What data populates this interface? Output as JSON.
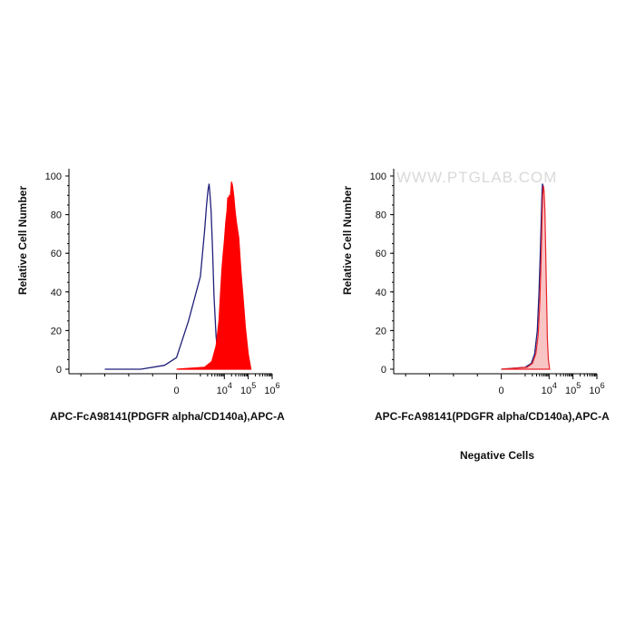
{
  "chart_data": [
    {
      "type": "area",
      "title": "",
      "xlabel": "APC-FcA98141(PDGFR alpha/CD140a),APC-A",
      "ylabel": "Relative Cell Number",
      "ylim": [
        0,
        100
      ],
      "x_scale": "biexponential",
      "x_tick_labels": [
        {
          "base": "0",
          "exp": ""
        },
        {
          "base": "10",
          "exp": "4"
        },
        {
          "base": "10",
          "exp": "5"
        },
        {
          "base": "10",
          "exp": "6"
        }
      ],
      "y_ticks": [
        0,
        20,
        40,
        60,
        80,
        100
      ],
      "series": [
        {
          "role": "control",
          "style": "line",
          "color": "#1f1f7a",
          "x": [
            -3000,
            -1500,
            -500,
            0,
            500,
            1000,
            1500,
            1800,
            2100,
            2300,
            2500,
            2800,
            3200,
            3700,
            4500,
            5500,
            6500,
            8000
          ],
          "y": [
            0,
            0,
            2,
            6,
            25,
            48,
            72,
            85,
            93,
            96,
            91,
            82,
            62,
            38,
            17,
            6,
            2,
            0
          ]
        },
        {
          "role": "stained",
          "style": "filled",
          "color": "#ff0000",
          "x": [
            0,
            1500,
            3000,
            4500,
            6000,
            7000,
            8000,
            9000,
            10000,
            11500,
            13000,
            14000,
            15000,
            16000,
            17000,
            18000,
            19000,
            20000,
            22000,
            25000,
            28000,
            32000,
            40000,
            50000,
            60000,
            75000,
            100000,
            130000
          ],
          "y": [
            0,
            1,
            4,
            12,
            25,
            40,
            52,
            60,
            66,
            76,
            82,
            89,
            86,
            90,
            87,
            90,
            93,
            97,
            95,
            89,
            82,
            76,
            68,
            50,
            38,
            22,
            8,
            0
          ]
        }
      ]
    },
    {
      "type": "area",
      "title": "",
      "subtitle": "Negative Cells",
      "watermark": "WWW.PTGLAB.COM",
      "xlabel": "APC-FcA98141(PDGFR alpha/CD140a),APC-A",
      "ylabel": "Relative Cell Number",
      "ylim": [
        0,
        100
      ],
      "x_scale": "biexponential",
      "x_tick_labels": [
        {
          "base": "0",
          "exp": ""
        },
        {
          "base": "10",
          "exp": "4"
        },
        {
          "base": "10",
          "exp": "5"
        },
        {
          "base": "10",
          "exp": "6"
        }
      ],
      "y_ticks": [
        0,
        20,
        40,
        60,
        80,
        100
      ],
      "series": [
        {
          "role": "control",
          "style": "line",
          "color": "#1f1f7a",
          "x": [
            0,
            1000,
            1800,
            2500,
            3200,
            3800,
            4300,
            4700,
            5000,
            5300,
            5700,
            6100,
            6500,
            7000,
            7600,
            8300,
            9000,
            10000
          ],
          "y": [
            0,
            1,
            3,
            8,
            20,
            40,
            60,
            78,
            90,
            96,
            94,
            85,
            70,
            50,
            28,
            12,
            4,
            0
          ]
        },
        {
          "role": "stained",
          "style": "filled",
          "color": "#e8232a",
          "fill": "#f9c4c4",
          "x": [
            0,
            1200,
            2000,
            2800,
            3500,
            4100,
            4600,
            5000,
            5400,
            5800,
            6200,
            6700,
            7200,
            7800,
            8500,
            9300,
            10500
          ],
          "y": [
            0,
            1,
            3,
            8,
            18,
            35,
            55,
            75,
            90,
            95,
            92,
            82,
            62,
            38,
            16,
            5,
            0
          ]
        }
      ]
    }
  ]
}
